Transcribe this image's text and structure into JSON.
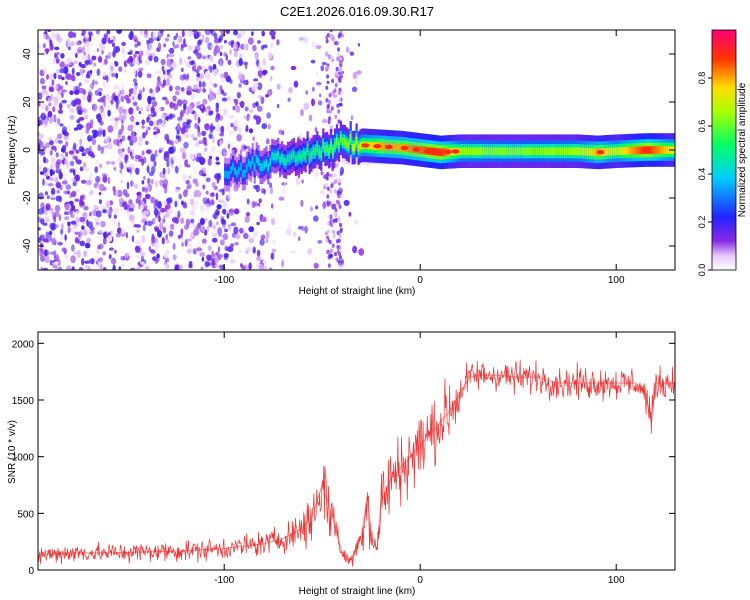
{
  "chart_data": [
    {
      "type": "heatmap",
      "title": "C2E1.2026.016.09.30.R17",
      "xlabel": "Height of straight line (km)",
      "ylabel": "Frequency (Hz)",
      "xlim": [
        -195,
        130
      ],
      "ylim": [
        -50,
        50
      ],
      "x_ticks": [
        -100,
        0,
        100
      ],
      "y_ticks": [
        -40,
        -20,
        0,
        20,
        40
      ],
      "colorbar": {
        "label": "Normalized spectral amplitude",
        "range": [
          0,
          1
        ],
        "ticks": [
          "0.0",
          "0.2",
          "0.4",
          "0.6",
          "0.8"
        ],
        "tick_values": [
          0.0,
          0.2,
          0.4,
          0.6,
          0.8
        ]
      },
      "ridge": [
        {
          "x": -100,
          "f": -10,
          "amp": 0.35
        },
        {
          "x": -90,
          "f": -7,
          "amp": 0.35
        },
        {
          "x": -80,
          "f": -5,
          "amp": 0.4
        },
        {
          "x": -70,
          "f": -3,
          "amp": 0.45
        },
        {
          "x": -60,
          "f": -1,
          "amp": 0.5
        },
        {
          "x": -50,
          "f": 0,
          "amp": 0.55
        },
        {
          "x": -40,
          "f": 2,
          "amp": 0.6
        },
        {
          "x": -30,
          "f": 2,
          "amp": 0.7
        },
        {
          "x": -20,
          "f": 1.5,
          "amp": 0.8
        },
        {
          "x": -10,
          "f": 1,
          "amp": 0.8
        },
        {
          "x": 0,
          "f": 0,
          "amp": 0.85
        },
        {
          "x": 10,
          "f": -1,
          "amp": 0.9
        },
        {
          "x": 20,
          "f": -0.5,
          "amp": 0.65
        },
        {
          "x": 40,
          "f": -0.5,
          "amp": 0.62
        },
        {
          "x": 60,
          "f": -0.5,
          "amp": 0.62
        },
        {
          "x": 80,
          "f": -0.5,
          "amp": 0.65
        },
        {
          "x": 90,
          "f": -1,
          "amp": 0.8
        },
        {
          "x": 100,
          "f": -0.5,
          "amp": 0.7
        },
        {
          "x": 115,
          "f": 0,
          "amp": 0.9
        },
        {
          "x": 130,
          "f": 0,
          "amp": 0.7
        }
      ]
    },
    {
      "type": "line",
      "xlabel": "Height of straight line (km)",
      "ylabel": "SNR (10 * v/v)",
      "xlim": [
        -195,
        130
      ],
      "ylim": [
        0,
        2100
      ],
      "x_ticks": [
        -100,
        0,
        100
      ],
      "y_ticks": [
        0,
        500,
        1000,
        1500,
        2000
      ],
      "color": "#ee3333",
      "series": [
        {
          "name": "SNR",
          "x": [
            -195,
            -180,
            -160,
            -140,
            -120,
            -100,
            -90,
            -80,
            -70,
            -65,
            -60,
            -55,
            -50,
            -45,
            -40,
            -38,
            -35,
            -30,
            -27,
            -25,
            -22,
            -20,
            -15,
            -10,
            -5,
            0,
            5,
            10,
            15,
            20,
            25,
            30,
            40,
            50,
            60,
            70,
            80,
            90,
            100,
            110,
            115,
            118,
            120,
            125,
            130
          ],
          "y": [
            130,
            150,
            150,
            160,
            170,
            190,
            210,
            230,
            280,
            320,
            370,
            480,
            750,
            480,
            160,
            100,
            90,
            300,
            650,
            300,
            180,
            600,
            800,
            900,
            1000,
            1100,
            1200,
            1300,
            1400,
            1550,
            1700,
            1720,
            1720,
            1700,
            1700,
            1650,
            1650,
            1650,
            1650,
            1650,
            1550,
            1300,
            1650,
            1650,
            1650
          ]
        }
      ]
    }
  ]
}
